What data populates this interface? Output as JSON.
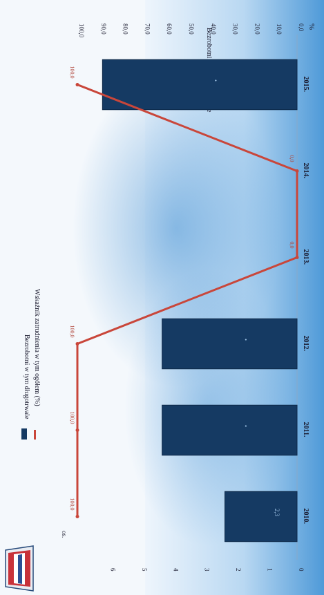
{
  "legend": {
    "bars_label": "Bezrobotni w tym długotrwale",
    "line_label": "Wskaźnik zatrudnienia w tym ogółem (%)",
    "corner_label": "Bezrobotni w tym długotrwale"
  },
  "right_axis_unit": "%",
  "left_axis_unit": "os.",
  "colors": {
    "bar": "#153a63",
    "bar_border": "#0d2747",
    "line": "#c9463a",
    "background_wash": "#5aa3dd"
  },
  "icons": {
    "logo": "emblem-icon"
  },
  "chart_data": {
    "type": "bar",
    "categories": [
      "2010.",
      "2011.",
      "2012.",
      "2013.",
      "2014.",
      "2015."
    ],
    "series": [
      {
        "name": "Bezrobotni w tym długotrwale",
        "type": "bar",
        "axis": "left",
        "values": [
          2.3,
          4.3,
          4.3,
          null,
          null,
          6.2
        ]
      },
      {
        "name": "Wskaźnik zatrudnienia w tym ogółem (%)",
        "type": "line",
        "axis": "right",
        "values": [
          100.0,
          100.0,
          100.0,
          0.0,
          0.0,
          100.0
        ]
      }
    ],
    "bar_data_labels": [
      "2,3",
      "•",
      "•",
      "",
      "",
      "•"
    ],
    "line_data_labels": [
      "100,0",
      "100,0",
      "100,0",
      "0,0",
      "0,0",
      "100,0"
    ],
    "left_axis": {
      "ticks": [
        "0",
        "1",
        "2",
        "3",
        "4",
        "5",
        "6"
      ],
      "range": [
        0,
        7
      ]
    },
    "right_axis": {
      "ticks": [
        "0,0",
        "10,0",
        "20,0",
        "30,0",
        "40,0",
        "50,0",
        "60,0",
        "70,0",
        "80,0",
        "90,0",
        "100,0"
      ],
      "range": [
        0,
        100
      ]
    },
    "orientation": "rotated 90° clockwise"
  }
}
